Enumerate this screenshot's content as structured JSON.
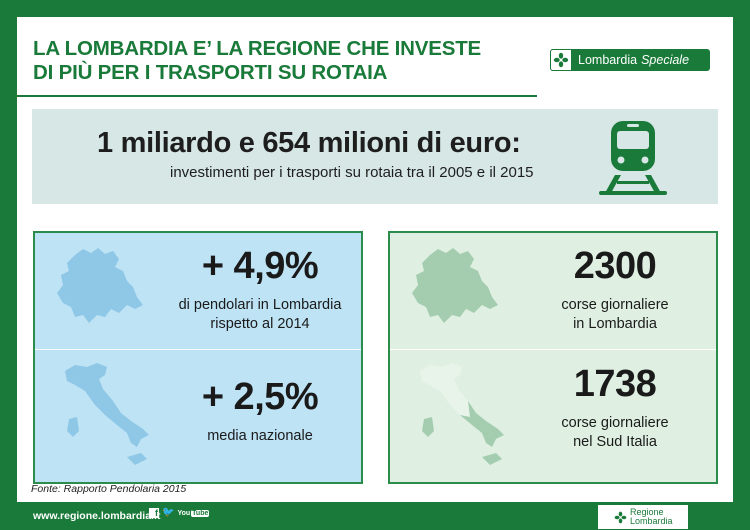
{
  "title": {
    "line1": "LA LOMBARDIA E’ LA REGIONE CHE INVESTE",
    "line2": "DI PIÙ PER I TRASPORTI SU ROTAIA"
  },
  "badge": {
    "word1": "Lombardia",
    "word2": "Speciale"
  },
  "headline": {
    "big": "1 miliardo e 654 milioni di euro:",
    "sub": "investimenti per i trasporti su rotaia tra il 2005 e il 2015"
  },
  "left_panel": {
    "stat1": {
      "value": "+ 4,9%",
      "desc_line1": "di pendolari in Lombardia",
      "desc_line2": "rispetto al 2014"
    },
    "stat2": {
      "value": "+ 2,5%",
      "desc_line1": "media nazionale"
    }
  },
  "right_panel": {
    "stat1": {
      "value": "2300",
      "desc_line1": "corse giornaliere",
      "desc_line2": "in Lombardia"
    },
    "stat2": {
      "value": "1738",
      "desc_line1": "corse giornaliere",
      "desc_line2": "nel Sud Italia"
    }
  },
  "source": "Fonte: Rapporto Pendolaria 2015",
  "footer": {
    "url": "www.regione.lombardia.it",
    "social": {
      "fb": "f",
      "tw": "🐦",
      "yt_a": "You",
      "yt_b": "Tube"
    },
    "logo_line1": "Regione",
    "logo_line2": "Lombardia"
  },
  "colors": {
    "brand_green": "#1a7a3a",
    "headline_bg": "#d6e7e5",
    "left_panel_bg": "#bde3f5",
    "right_panel_bg": "#dff0e3"
  },
  "icons": [
    "train-icon",
    "lombardia-cross-icon",
    "lombardia-map-icon",
    "italy-map-icon",
    "facebook-icon",
    "twitter-icon",
    "youtube-icon"
  ]
}
